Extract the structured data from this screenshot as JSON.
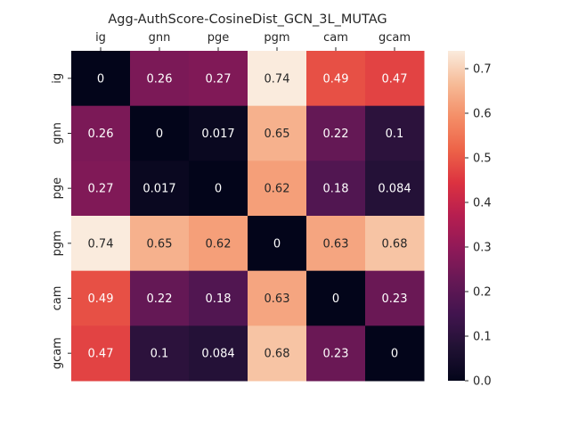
{
  "chart_data": {
    "type": "heatmap",
    "title": "Agg-AuthScore-CosineDist_GCN_3L_MUTAG",
    "x_labels": [
      "ig",
      "gnn",
      "pge",
      "pgm",
      "cam",
      "gcam"
    ],
    "y_labels": [
      "ig",
      "gnn",
      "pge",
      "pgm",
      "cam",
      "gcam"
    ],
    "values": [
      [
        0,
        0.26,
        0.27,
        0.74,
        0.49,
        0.47
      ],
      [
        0.26,
        0,
        0.017,
        0.65,
        0.22,
        0.1
      ],
      [
        0.27,
        0.017,
        0,
        0.62,
        0.18,
        0.084
      ],
      [
        0.74,
        0.65,
        0.62,
        0,
        0.63,
        0.68
      ],
      [
        0.49,
        0.22,
        0.18,
        0.63,
        0,
        0.23
      ],
      [
        0.47,
        0.1,
        0.084,
        0.68,
        0.23,
        0
      ]
    ],
    "cell_labels": [
      [
        "0",
        "0.26",
        "0.27",
        "0.74",
        "0.49",
        "0.47"
      ],
      [
        "0.26",
        "0",
        "0.017",
        "0.65",
        "0.22",
        "0.1"
      ],
      [
        "0.27",
        "0.017",
        "0",
        "0.62",
        "0.18",
        "0.084"
      ],
      [
        "0.74",
        "0.65",
        "0.62",
        "0",
        "0.63",
        "0.68"
      ],
      [
        "0.49",
        "0.22",
        "0.18",
        "0.63",
        "0",
        "0.23"
      ],
      [
        "0.47",
        "0.1",
        "0.084",
        "0.68",
        "0.23",
        "0"
      ]
    ],
    "x_axis_position": "top",
    "colormap": "rocket",
    "colorbar": {
      "range": [
        0,
        0.74
      ],
      "ticks": [
        0.0,
        0.1,
        0.2,
        0.3,
        0.4,
        0.5,
        0.6,
        0.7
      ],
      "tick_labels": [
        "0.0",
        "0.1",
        "0.2",
        "0.3",
        "0.4",
        "0.5",
        "0.6",
        "0.7"
      ]
    },
    "grid": false,
    "legend": "colorbar-right"
  }
}
